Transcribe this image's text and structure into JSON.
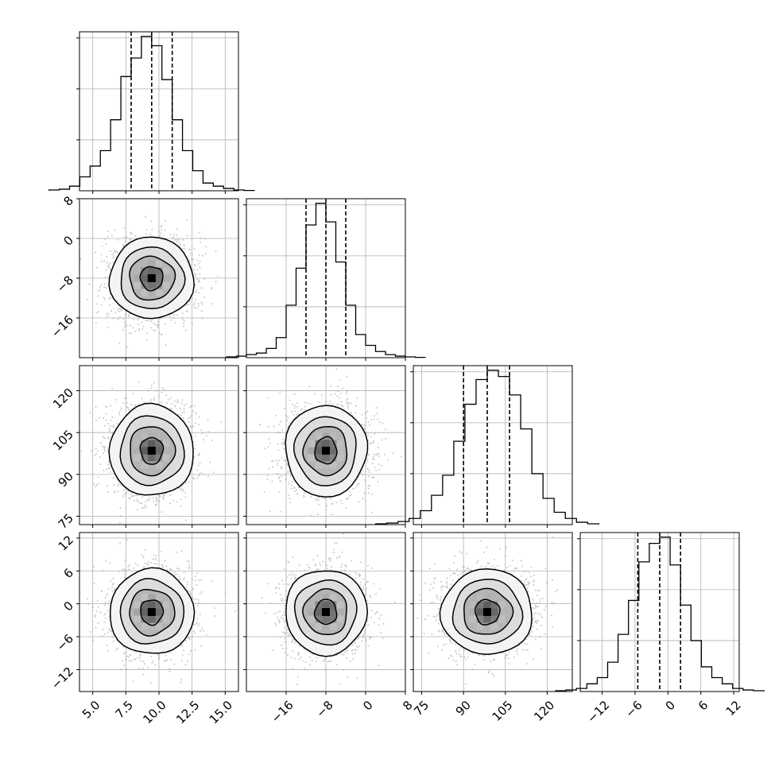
{
  "chart_data": {
    "type": "corner",
    "grid": true,
    "parameters": [
      {
        "range": [
          4,
          16
        ],
        "ticks": [
          5.0,
          7.5,
          10.0,
          12.5,
          15.0
        ],
        "tick_labels": [
          "5.0",
          "7.5",
          "10.0",
          "12.5",
          "15.0"
        ],
        "center": 9.45,
        "sigma": 1.55,
        "quantiles": [
          7.9,
          9.45,
          11.0
        ]
      },
      {
        "range": [
          -24,
          8
        ],
        "ticks": [
          -16,
          -8,
          0,
          8
        ],
        "tick_labels": [
          "−16",
          "−8",
          "0",
          "8"
        ],
        "center": -8,
        "sigma": 4,
        "quantiles": [
          -12,
          -8,
          -4
        ]
      },
      {
        "range": [
          72,
          129
        ],
        "ticks": [
          75,
          90,
          105,
          120
        ],
        "tick_labels": [
          "75",
          "90",
          "105",
          "120"
        ],
        "center": 98.5,
        "sigma": 8,
        "quantiles": [
          90,
          98.5,
          106.5
        ]
      },
      {
        "range": [
          -16,
          13
        ],
        "ticks": [
          -12,
          -6,
          0,
          6,
          12
        ],
        "tick_labels": [
          "−12",
          "−6",
          "0",
          "6",
          "12"
        ],
        "center": -1.5,
        "sigma": 3.8,
        "quantiles": [
          -5.5,
          -1.5,
          2.3
        ]
      }
    ],
    "histograms": [
      {
        "counts": [
          0.5,
          1,
          3,
          9,
          16,
          26,
          46,
          74,
          86,
          100,
          94,
          72,
          46,
          26,
          13,
          5,
          3,
          1.5,
          0.5,
          0.2
        ],
        "ymax": 103
      },
      {
        "counts": [
          0.5,
          1,
          2,
          3,
          6,
          13,
          34,
          58,
          86,
          100,
          88,
          62,
          34,
          15,
          8,
          4,
          2,
          1,
          0.5,
          0.2
        ],
        "ymax": 103
      },
      {
        "counts": [
          0.5,
          1,
          2,
          4,
          9,
          19,
          32,
          54,
          78,
          94,
          100,
          96,
          84,
          62,
          33,
          17,
          8,
          4,
          1.5,
          0.5
        ],
        "ymax": 103
      },
      {
        "counts": [
          0.5,
          1,
          2,
          5,
          9,
          19,
          37,
          59,
          84,
          96,
          100,
          82,
          56,
          33,
          16,
          9,
          5,
          2,
          1,
          0.5
        ],
        "ymax": 103
      }
    ]
  }
}
